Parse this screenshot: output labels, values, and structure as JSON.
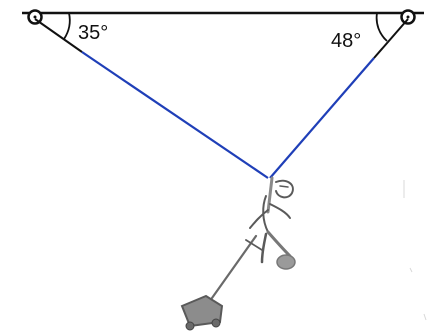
{
  "angles": {
    "left": {
      "label": "35°",
      "value_deg": 35
    },
    "right": {
      "label": "48°",
      "value_deg": 48
    }
  },
  "colors": {
    "rope": "#1f3fb8",
    "ceiling": "#111111",
    "figure": "#5a5a5a"
  }
}
